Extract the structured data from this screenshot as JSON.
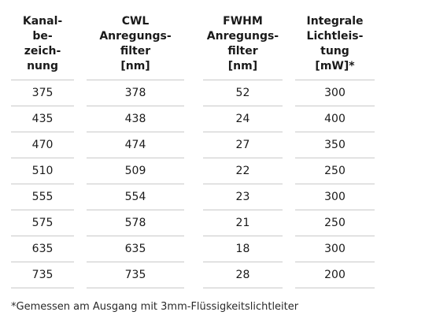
{
  "table": {
    "headers": [
      "Kanal-\nbe-\nzeich-\nnung",
      "CWL\nAnregungs-\nfilter\n[nm]",
      "FWHM\nAnregungs-\nfilter\n[nm]",
      "Integrale\nLichtleis-\ntung\n[mW]*"
    ],
    "rows": [
      [
        "375",
        "378",
        "52",
        "300"
      ],
      [
        "435",
        "438",
        "24",
        "400"
      ],
      [
        "470",
        "474",
        "27",
        "350"
      ],
      [
        "510",
        "509",
        "22",
        "250"
      ],
      [
        "555",
        "554",
        "23",
        "300"
      ],
      [
        "575",
        "578",
        "21",
        "250"
      ],
      [
        "635",
        "635",
        "18",
        "300"
      ],
      [
        "735",
        "735",
        "28",
        "200"
      ]
    ]
  },
  "footnote": "*Gemessen am Ausgang mit 3mm-Flüssigkeitslichtleiter"
}
